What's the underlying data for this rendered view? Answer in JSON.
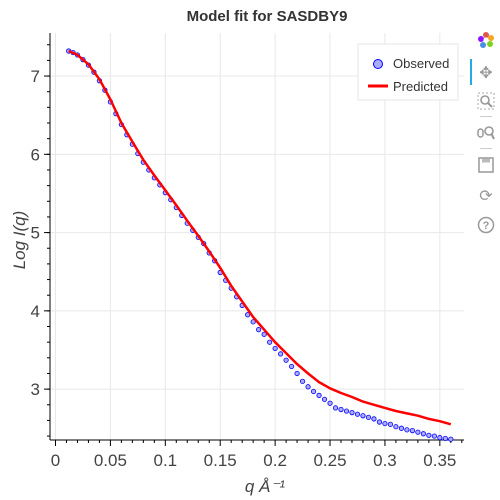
{
  "chart_data": {
    "type": "scatter",
    "title": "Model fit for SASDBY9",
    "xlabel": "q Å⁻¹",
    "ylabel": "Log I(q)",
    "xlim": [
      -0.005,
      0.372
    ],
    "ylim": [
      2.35,
      7.55
    ],
    "x_ticks": [
      0,
      0.05,
      0.1,
      0.15,
      0.2,
      0.25,
      0.3,
      0.35
    ],
    "x_tick_labels": [
      "0",
      "0.05",
      "0.1",
      "0.15",
      "0.2",
      "0.25",
      "0.3",
      "0.35"
    ],
    "y_ticks": [
      3,
      4,
      5,
      6,
      7
    ],
    "y_tick_labels": [
      "3",
      "4",
      "5",
      "6",
      "7"
    ],
    "grid": true,
    "legend_position": "top-right",
    "series": [
      {
        "name": "Observed",
        "kind": "scatter",
        "color": "#0000ff",
        "x": [
          0.012,
          0.016,
          0.02,
          0.025,
          0.03,
          0.035,
          0.04,
          0.045,
          0.05,
          0.055,
          0.06,
          0.065,
          0.07,
          0.075,
          0.08,
          0.085,
          0.09,
          0.095,
          0.1,
          0.105,
          0.11,
          0.115,
          0.12,
          0.125,
          0.13,
          0.135,
          0.14,
          0.145,
          0.15,
          0.155,
          0.16,
          0.165,
          0.17,
          0.175,
          0.18,
          0.185,
          0.19,
          0.195,
          0.2,
          0.205,
          0.21,
          0.215,
          0.22,
          0.225,
          0.23,
          0.235,
          0.24,
          0.245,
          0.25,
          0.255,
          0.26,
          0.265,
          0.27,
          0.275,
          0.28,
          0.285,
          0.29,
          0.295,
          0.3,
          0.305,
          0.31,
          0.315,
          0.32,
          0.325,
          0.33,
          0.335,
          0.34,
          0.345,
          0.35,
          0.355,
          0.36
        ],
        "y": [
          7.32,
          7.3,
          7.27,
          7.21,
          7.14,
          7.05,
          6.94,
          6.82,
          6.67,
          6.52,
          6.38,
          6.25,
          6.13,
          6.01,
          5.9,
          5.8,
          5.7,
          5.61,
          5.51,
          5.42,
          5.32,
          5.22,
          5.12,
          5.03,
          4.94,
          4.86,
          4.74,
          4.64,
          4.49,
          4.39,
          4.29,
          4.18,
          4.07,
          3.95,
          3.86,
          3.76,
          3.7,
          3.6,
          3.52,
          3.45,
          3.37,
          3.29,
          3.2,
          3.1,
          3.03,
          2.97,
          2.92,
          2.87,
          2.82,
          2.76,
          2.74,
          2.72,
          2.7,
          2.68,
          2.66,
          2.64,
          2.62,
          2.58,
          2.56,
          2.55,
          2.52,
          2.5,
          2.48,
          2.47,
          2.45,
          2.43,
          2.41,
          2.4,
          2.38,
          2.37,
          2.36
        ]
      },
      {
        "name": "Predicted",
        "kind": "line",
        "color": "#ff0000",
        "x": [
          0.012,
          0.02,
          0.03,
          0.04,
          0.05,
          0.06,
          0.07,
          0.08,
          0.09,
          0.1,
          0.11,
          0.12,
          0.13,
          0.14,
          0.15,
          0.16,
          0.17,
          0.18,
          0.19,
          0.2,
          0.21,
          0.22,
          0.23,
          0.24,
          0.25,
          0.26,
          0.27,
          0.28,
          0.29,
          0.3,
          0.31,
          0.32,
          0.33,
          0.34,
          0.35,
          0.36
        ],
        "y": [
          7.32,
          7.27,
          7.15,
          6.96,
          6.7,
          6.4,
          6.16,
          5.93,
          5.73,
          5.54,
          5.35,
          5.15,
          4.96,
          4.76,
          4.55,
          4.32,
          4.12,
          3.92,
          3.76,
          3.6,
          3.46,
          3.32,
          3.2,
          3.09,
          3.01,
          2.95,
          2.9,
          2.84,
          2.8,
          2.76,
          2.72,
          2.69,
          2.66,
          2.62,
          2.59,
          2.55
        ]
      }
    ]
  },
  "legend": {
    "observed_label": "Observed",
    "predicted_label": "Predicted"
  },
  "toolbar": {
    "icons": [
      "bokeh-logo-icon",
      "pan-icon",
      "box-zoom-icon",
      "wheel-zoom-icon",
      "save-icon",
      "reset-icon",
      "help-icon"
    ]
  }
}
